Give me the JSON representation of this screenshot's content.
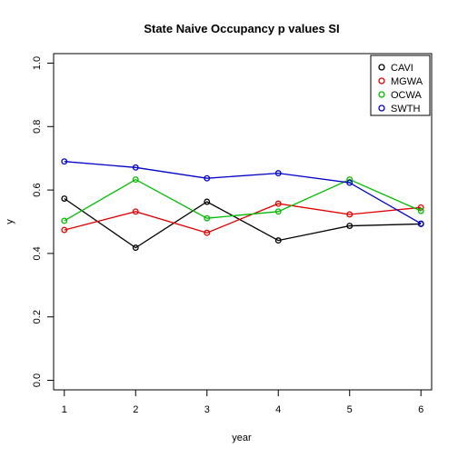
{
  "chart_data": {
    "type": "line",
    "title": "State Naive Occupancy p values SI",
    "xlabel": "year",
    "ylabel": "y",
    "x": [
      1,
      2,
      3,
      4,
      5,
      6
    ],
    "xlim": [
      0.85,
      6.15
    ],
    "ylim": [
      -0.03,
      1.03
    ],
    "xticks": [
      "1",
      "2",
      "3",
      "4",
      "5",
      "6"
    ],
    "yticks": [
      "0.0",
      "0.2",
      "0.4",
      "0.6",
      "0.8",
      "1.0"
    ],
    "grid": false,
    "legend_position": "top-right",
    "series": [
      {
        "name": "CAVI",
        "color": "#000000",
        "values": [
          0.573,
          0.418,
          0.563,
          0.441,
          0.487,
          0.493
        ]
      },
      {
        "name": "MGWA",
        "color": "#df0000",
        "values": [
          0.474,
          0.532,
          0.465,
          0.557,
          0.523,
          0.545
        ]
      },
      {
        "name": "OCWA",
        "color": "#00bb00",
        "values": [
          0.503,
          0.633,
          0.511,
          0.532,
          0.633,
          0.534
        ]
      },
      {
        "name": "SWTH",
        "color": "#0000c8",
        "values": [
          0.69,
          0.671,
          0.637,
          0.653,
          0.623,
          0.494
        ]
      }
    ]
  }
}
